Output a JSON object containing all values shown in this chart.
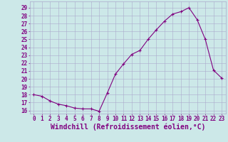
{
  "x": [
    0,
    1,
    2,
    3,
    4,
    5,
    6,
    7,
    8,
    9,
    10,
    11,
    12,
    13,
    14,
    15,
    16,
    17,
    18,
    19,
    20,
    21,
    22,
    23
  ],
  "y": [
    18,
    17.8,
    17.2,
    16.8,
    16.6,
    16.3,
    16.2,
    16.2,
    15.9,
    18.2,
    20.6,
    21.9,
    23.1,
    23.6,
    25.0,
    26.2,
    27.3,
    28.2,
    28.5,
    29.0,
    27.5,
    25.0,
    21.1,
    20.1
  ],
  "line_color": "#800080",
  "marker": "+",
  "marker_size": 3,
  "linewidth": 0.8,
  "xlabel": "Windchill (Refroidissement éolien,°C)",
  "xlabel_fontsize": 7,
  "xlim": [
    -0.5,
    23.5
  ],
  "ylim": [
    15.6,
    29.8
  ],
  "yticks": [
    16,
    17,
    18,
    19,
    20,
    21,
    22,
    23,
    24,
    25,
    26,
    27,
    28,
    29
  ],
  "xticks": [
    0,
    1,
    2,
    3,
    4,
    5,
    6,
    7,
    8,
    9,
    10,
    11,
    12,
    13,
    14,
    15,
    16,
    17,
    18,
    19,
    20,
    21,
    22,
    23
  ],
  "bg_color": "#cce8e8",
  "grid_color": "#aaaacc",
  "tick_label_fontsize": 5.5,
  "tick_color": "#800080"
}
